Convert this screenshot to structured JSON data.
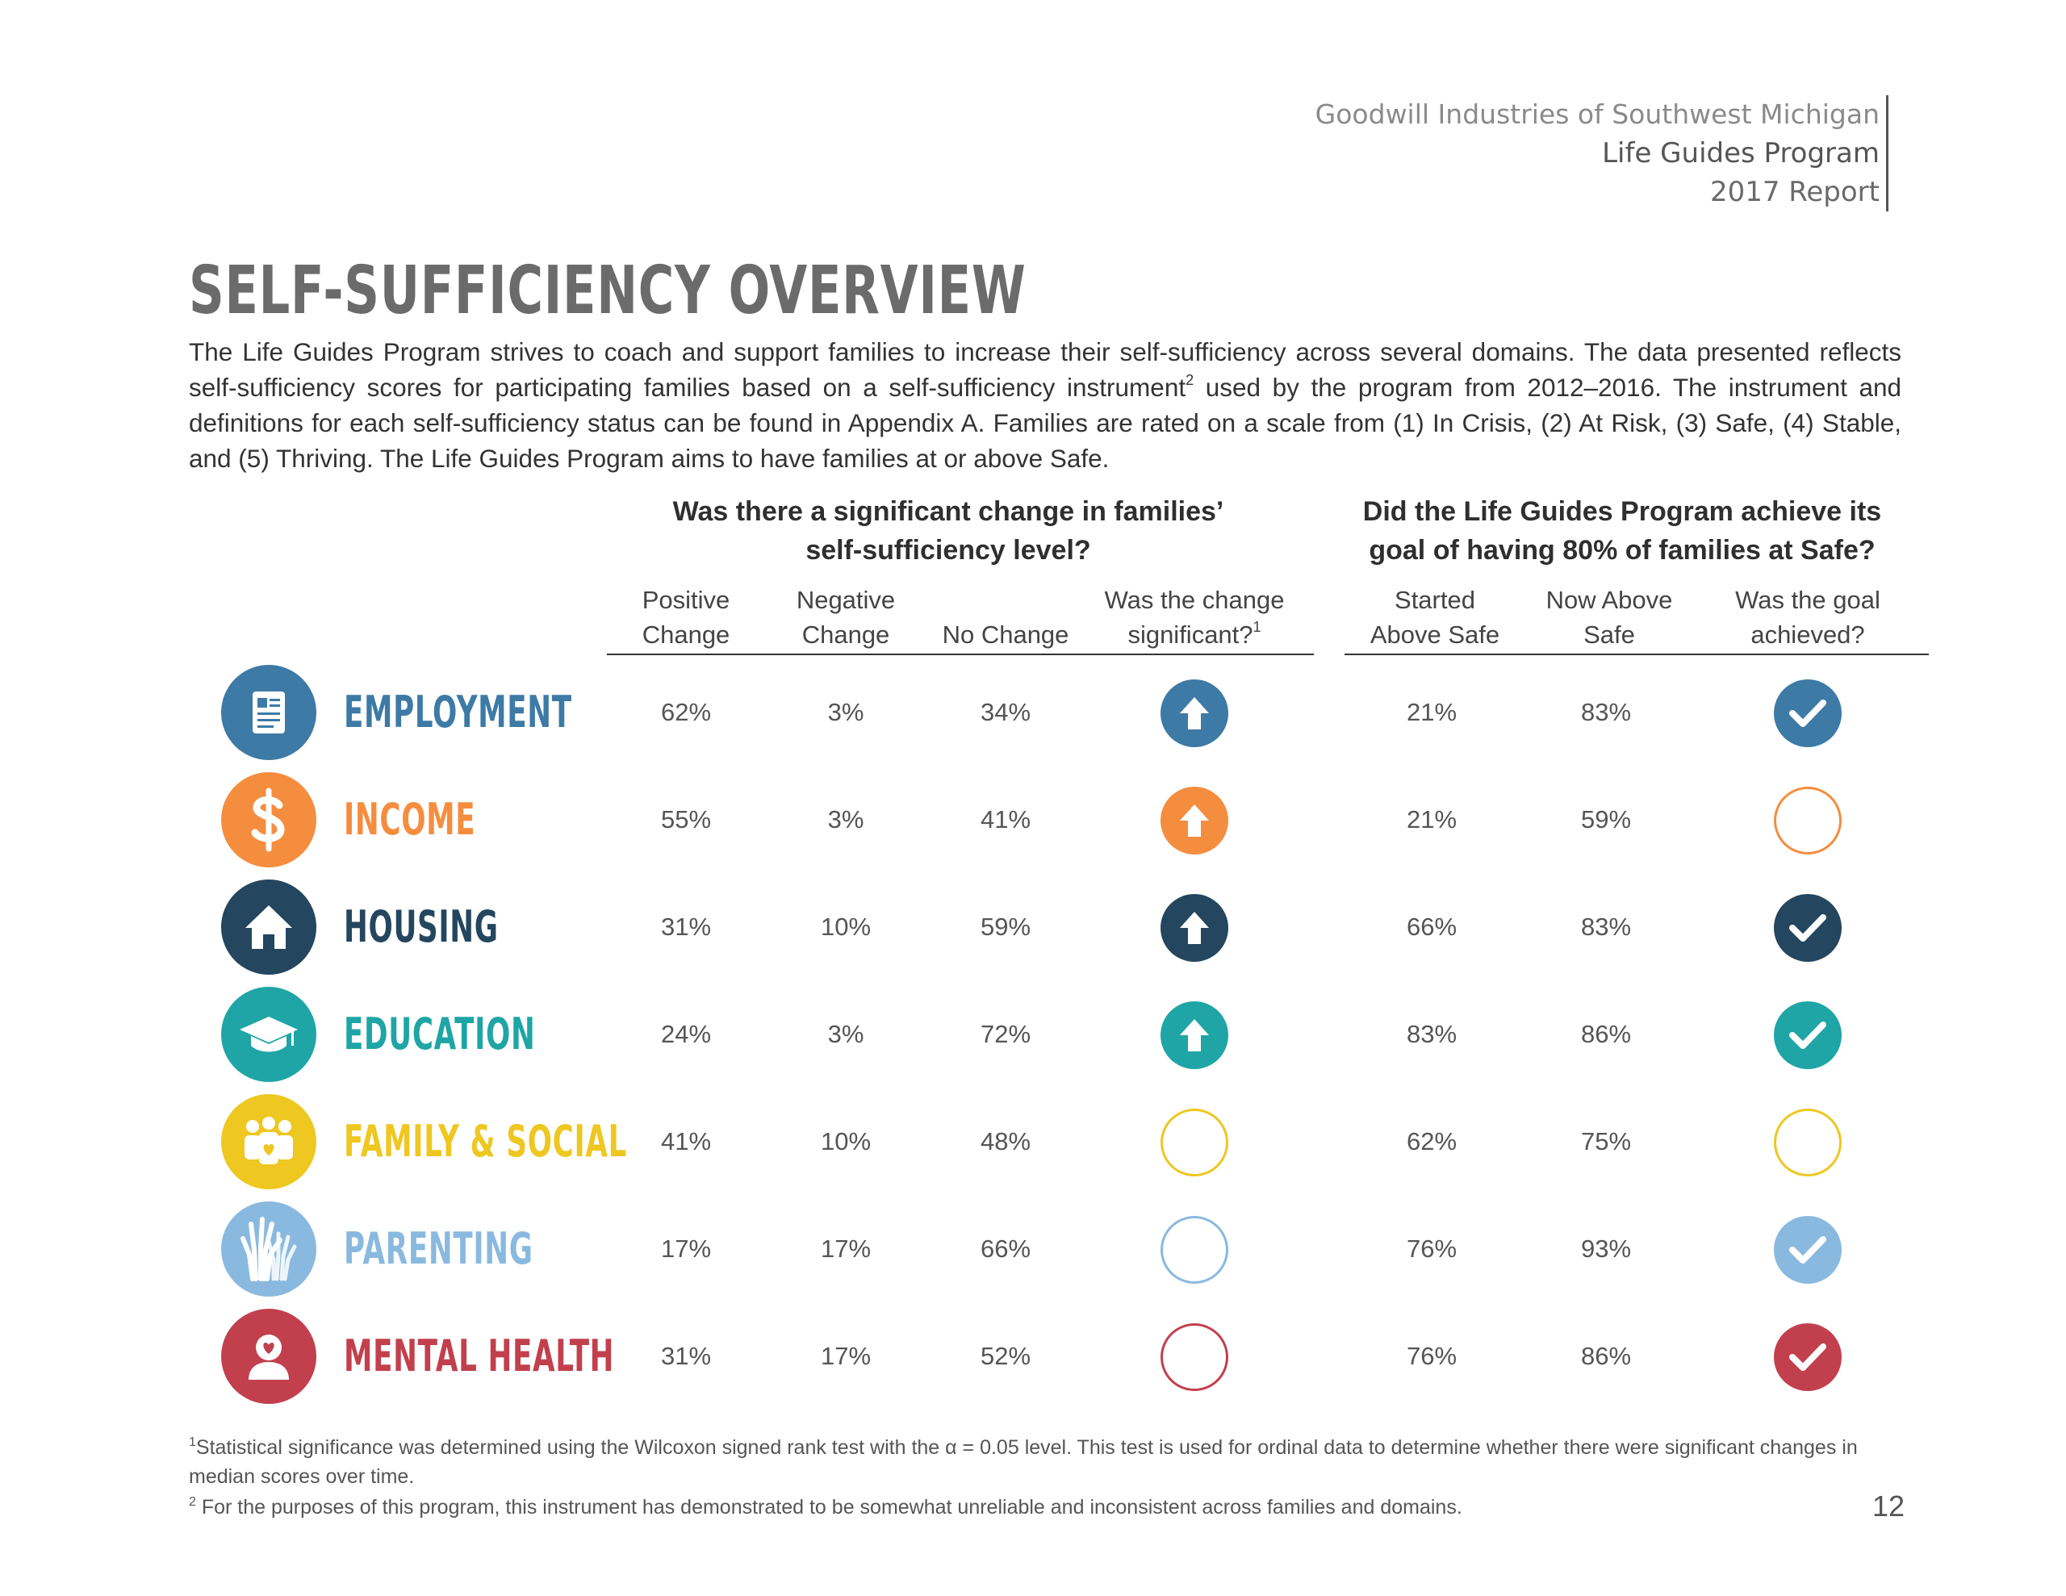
{
  "header": {
    "org": "Goodwill Industries of Southwest Michigan",
    "program": "Life Guides Program",
    "report": "2017 Report"
  },
  "title": "SELF-SUFFICIENCY OVERVIEW",
  "intro": {
    "part1": "The Life Guides Program strives to coach and support families to increase their self-sufficiency across several domains. The data presented reflects self-sufficiency scores for participating families based on a self-sufficiency instrument",
    "sup": "2",
    "part2": " used by the program from 2012–2016. The instrument and definitions for each self-sufficiency status can be found in Appendix A. Families are rated on a scale from (1) In Crisis, (2) At Risk, (3) Safe, (4) Stable, and (5) Thriving. The Life Guides Program aims to have families at or above Safe."
  },
  "group1": {
    "line1": "Was there a significant change in families’",
    "line2": "self-sufficiency level?"
  },
  "group2": {
    "line1": "Did the Life Guides Program achieve its",
    "line2": "goal of having 80% of families at Safe?"
  },
  "columns": {
    "positive": [
      "Positive",
      "Change"
    ],
    "negative": [
      "Negative",
      "Change"
    ],
    "nochange": [
      "",
      "No Change"
    ],
    "significant": [
      "Was the change",
      "significant?"
    ],
    "significant_sup": "1",
    "started": [
      "Started",
      "Above Safe"
    ],
    "now": [
      "Now Above",
      "Safe"
    ],
    "goal": [
      "Was the goal",
      "achieved?"
    ]
  },
  "colors": {
    "employment": "#3d7aa6",
    "income": "#f58d3f",
    "housing": "#24465f",
    "education": "#1fa5a5",
    "family": "#eec720",
    "parenting": "#8ab9df",
    "mental": "#c2404d"
  },
  "rows": [
    {
      "key": "employment",
      "label": "EMPLOYMENT",
      "icon": "id-card-icon",
      "positive": "62%",
      "negative": "3%",
      "nochange": "34%",
      "significant": true,
      "started": "21%",
      "now": "83%",
      "achieved": true
    },
    {
      "key": "income",
      "label": "INCOME",
      "icon": "dollar-icon",
      "positive": "55%",
      "negative": "3%",
      "nochange": "41%",
      "significant": true,
      "started": "21%",
      "now": "59%",
      "achieved": false
    },
    {
      "key": "housing",
      "label": "HOUSING",
      "icon": "house-icon",
      "positive": "31%",
      "negative": "10%",
      "nochange": "59%",
      "significant": true,
      "started": "66%",
      "now": "83%",
      "achieved": true
    },
    {
      "key": "education",
      "label": "EDUCATION",
      "icon": "graduation-cap-icon",
      "positive": "24%",
      "negative": "3%",
      "nochange": "72%",
      "significant": true,
      "started": "83%",
      "now": "86%",
      "achieved": true
    },
    {
      "key": "family",
      "label": "FAMILY & SOCIAL",
      "icon": "family-icon",
      "positive": "41%",
      "negative": "10%",
      "nochange": "48%",
      "significant": false,
      "started": "62%",
      "now": "75%",
      "achieved": false
    },
    {
      "key": "parenting",
      "label": "PARENTING",
      "icon": "hands-icon",
      "positive": "17%",
      "negative": "17%",
      "nochange": "66%",
      "significant": false,
      "started": "76%",
      "now": "93%",
      "achieved": true
    },
    {
      "key": "mental",
      "label": "MENTAL HEALTH",
      "icon": "person-heart-icon",
      "positive": "31%",
      "negative": "17%",
      "nochange": "52%",
      "significant": false,
      "started": "76%",
      "now": "86%",
      "achieved": true
    }
  ],
  "footnotes": {
    "f1_sup": "1",
    "f1": "Statistical significance was determined using the Wilcoxon signed rank test with the α = 0.05 level. This test is used for ordinal data to determine whether there were significant changes in median scores over time.",
    "f2_sup": "2",
    "f2": " For the purposes of this program, this instrument has demonstrated to be somewhat unreliable and inconsistent across families and domains."
  },
  "page_number": "12"
}
